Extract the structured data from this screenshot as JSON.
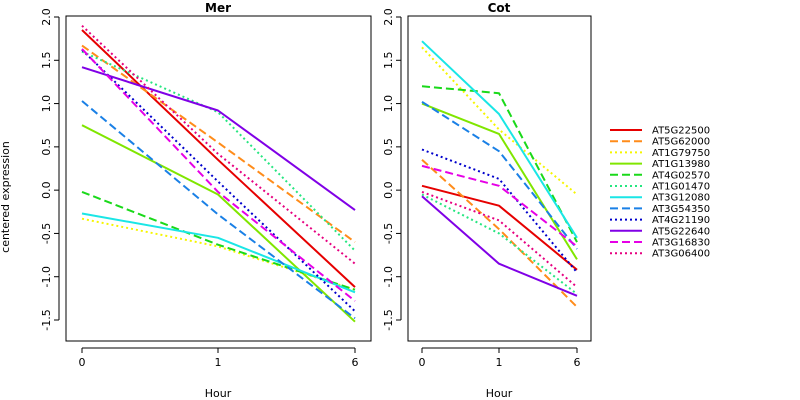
{
  "figure": {
    "ylabel": "centered expression",
    "xlabel": "Hour"
  },
  "chart_data": [
    {
      "type": "line",
      "title": "Mer",
      "x": [
        0,
        1,
        6
      ],
      "xticks": [
        "0",
        "1",
        "6"
      ],
      "ylim": [
        -1.6,
        2.0
      ],
      "yticks": [
        -1.5,
        -1.0,
        -0.5,
        0.0,
        0.5,
        1.0,
        1.5,
        2.0
      ],
      "xlabel": "Hour",
      "ylabel": "centered expression",
      "series": [
        {
          "name": "AT5G22500",
          "color": "#e60000",
          "dash": "solid",
          "values": [
            1.85,
            0.35,
            -1.12
          ]
        },
        {
          "name": "AT5G62000",
          "color": "#ff8c1a",
          "dash": "dashed",
          "values": [
            1.67,
            0.55,
            -0.6
          ]
        },
        {
          "name": "AT1G79750",
          "color": "#f5f500",
          "dash": "dotted",
          "values": [
            -0.33,
            -0.65,
            -1.15
          ]
        },
        {
          "name": "AT1G13980",
          "color": "#80e600",
          "dash": "solid",
          "values": [
            0.75,
            -0.05,
            -1.52
          ]
        },
        {
          "name": "AT4G02570",
          "color": "#1ad91a",
          "dash": "dashed",
          "values": [
            -0.02,
            -0.63,
            -1.15
          ]
        },
        {
          "name": "AT1G01470",
          "color": "#26e680",
          "dash": "dotted",
          "values": [
            1.6,
            0.9,
            -0.7
          ]
        },
        {
          "name": "AT3G12080",
          "color": "#1ae6e6",
          "dash": "solid",
          "values": [
            -0.27,
            -0.55,
            -1.18
          ]
        },
        {
          "name": "AT3G54350",
          "color": "#1a80e6",
          "dash": "dashed",
          "values": [
            1.03,
            -0.28,
            -1.48
          ]
        },
        {
          "name": "AT4G21190",
          "color": "#0000cc",
          "dash": "dotted",
          "values": [
            1.62,
            0.1,
            -1.4
          ]
        },
        {
          "name": "AT5G22640",
          "color": "#8000e6",
          "dash": "solid",
          "values": [
            1.42,
            0.92,
            -0.23
          ]
        },
        {
          "name": "AT3G16830",
          "color": "#e600e6",
          "dash": "dashed",
          "values": [
            1.63,
            -0.02,
            -1.28
          ]
        },
        {
          "name": "AT3G06400",
          "color": "#e60080",
          "dash": "dotted",
          "values": [
            1.9,
            0.42,
            -0.85
          ]
        }
      ]
    },
    {
      "type": "line",
      "title": "Cot",
      "x": [
        0,
        1,
        6
      ],
      "xticks": [
        "0",
        "1",
        "6"
      ],
      "ylim": [
        -1.6,
        2.0
      ],
      "yticks": [
        -1.5,
        -1.0,
        -0.5,
        0.0,
        0.5,
        1.0,
        1.5,
        2.0
      ],
      "xlabel": "Hour",
      "series": [
        {
          "name": "AT5G22500",
          "color": "#e60000",
          "dash": "solid",
          "values": [
            0.05,
            -0.18,
            -0.92
          ]
        },
        {
          "name": "AT5G62000",
          "color": "#ff8c1a",
          "dash": "dashed",
          "values": [
            0.35,
            -0.45,
            -1.35
          ]
        },
        {
          "name": "AT1G79750",
          "color": "#f5f500",
          "dash": "dotted",
          "values": [
            1.65,
            0.7,
            -0.05
          ]
        },
        {
          "name": "AT1G13980",
          "color": "#80e600",
          "dash": "solid",
          "values": [
            1.0,
            0.65,
            -0.8
          ]
        },
        {
          "name": "AT4G02570",
          "color": "#1ad91a",
          "dash": "dashed",
          "values": [
            1.2,
            1.12,
            -0.6
          ]
        },
        {
          "name": "AT1G01470",
          "color": "#26e680",
          "dash": "dotted",
          "values": [
            -0.05,
            -0.5,
            -1.2
          ]
        },
        {
          "name": "AT3G12080",
          "color": "#1ae6e6",
          "dash": "solid",
          "values": [
            1.72,
            0.88,
            -0.55
          ]
        },
        {
          "name": "AT3G54350",
          "color": "#1a80e6",
          "dash": "dashed",
          "values": [
            1.02,
            0.45,
            -0.68
          ]
        },
        {
          "name": "AT4G21190",
          "color": "#0000cc",
          "dash": "dotted",
          "values": [
            0.47,
            0.13,
            -0.95
          ]
        },
        {
          "name": "AT5G22640",
          "color": "#8000e6",
          "dash": "solid",
          "values": [
            -0.07,
            -0.85,
            -1.22
          ]
        },
        {
          "name": "AT3G16830",
          "color": "#e600e6",
          "dash": "dashed",
          "values": [
            0.28,
            0.05,
            -0.65
          ]
        },
        {
          "name": "AT3G06400",
          "color": "#e60080",
          "dash": "dotted",
          "values": [
            -0.02,
            -0.35,
            -1.12
          ]
        }
      ]
    }
  ]
}
